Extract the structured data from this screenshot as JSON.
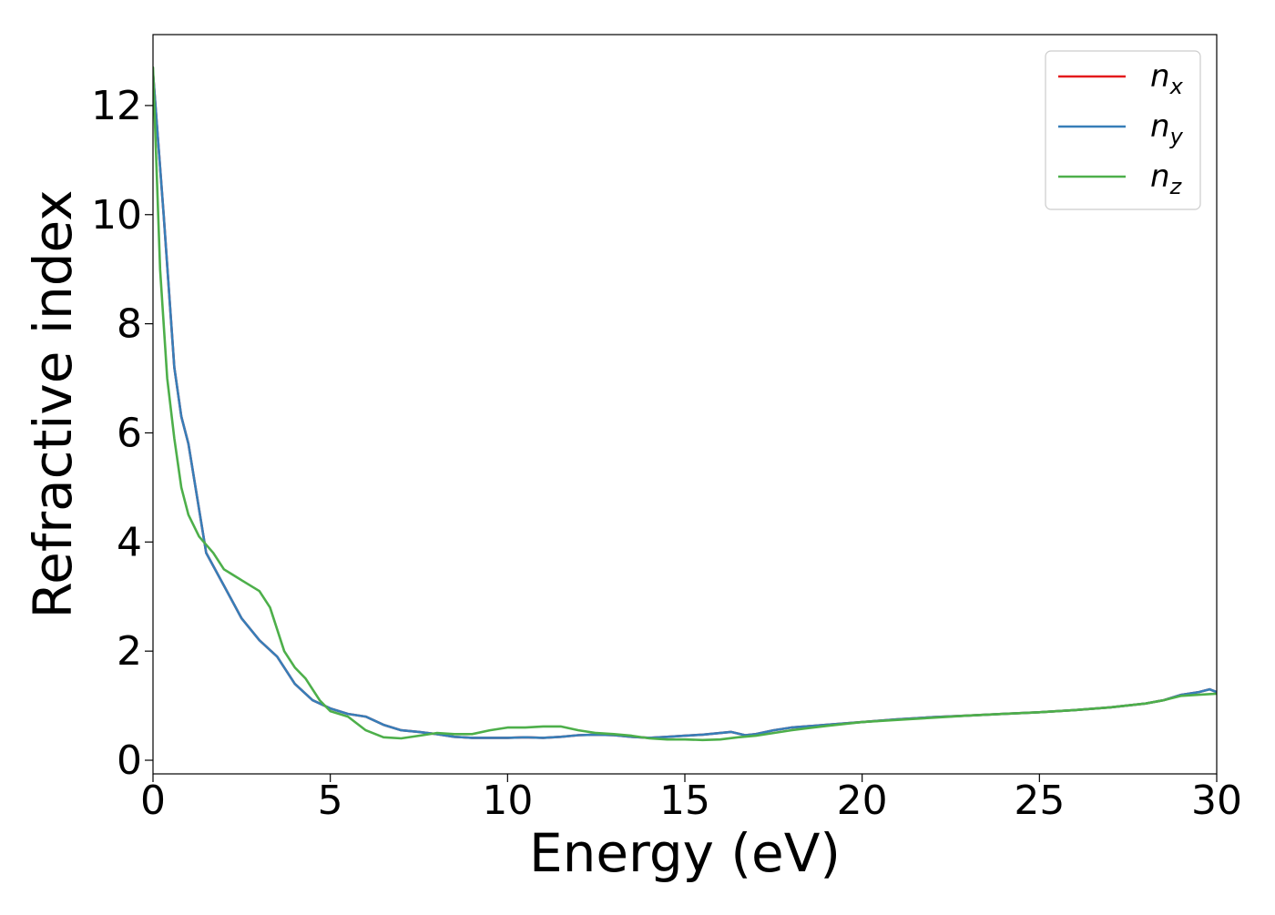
{
  "chart_data": {
    "type": "line",
    "title": "",
    "xlabel": "Energy (eV)",
    "ylabel": "Refractive index",
    "xlim": [
      0,
      30
    ],
    "ylim": [
      -0.25,
      13.3
    ],
    "xticks": [
      0,
      5,
      10,
      15,
      20,
      25,
      30
    ],
    "yticks": [
      0,
      2,
      4,
      6,
      8,
      10,
      12
    ],
    "grid": false,
    "legend_position": "top-right",
    "series": [
      {
        "name": "n",
        "subscript": "x",
        "color": "#e41a1c",
        "x": [
          0,
          0.3,
          0.6,
          0.8,
          1.0,
          1.2,
          1.5,
          2.0,
          2.5,
          3.0,
          3.5,
          4.0,
          4.5,
          5.0,
          5.5,
          6.0,
          6.5,
          7.0,
          7.5,
          8.0,
          8.5,
          9.0,
          9.5,
          10.0,
          10.5,
          11.0,
          11.5,
          12.0,
          12.5,
          13.0,
          13.5,
          14.0,
          14.5,
          15.0,
          15.5,
          16.0,
          16.3,
          16.7,
          17.0,
          17.5,
          18.0,
          19.0,
          20.0,
          21.0,
          22.0,
          23.0,
          24.0,
          25.0,
          26.0,
          27.0,
          28.0,
          28.5,
          29.0,
          29.5,
          29.8,
          30.0
        ],
        "y": [
          12.6,
          10.0,
          7.2,
          6.3,
          5.8,
          5.0,
          3.8,
          3.2,
          2.6,
          2.2,
          1.9,
          1.4,
          1.1,
          0.95,
          0.85,
          0.8,
          0.65,
          0.55,
          0.52,
          0.48,
          0.43,
          0.41,
          0.41,
          0.41,
          0.42,
          0.41,
          0.43,
          0.46,
          0.47,
          0.46,
          0.43,
          0.41,
          0.43,
          0.45,
          0.47,
          0.5,
          0.52,
          0.46,
          0.48,
          0.55,
          0.6,
          0.65,
          0.7,
          0.75,
          0.79,
          0.82,
          0.85,
          0.88,
          0.92,
          0.97,
          1.04,
          1.1,
          1.2,
          1.25,
          1.3,
          1.25
        ]
      },
      {
        "name": "n",
        "subscript": "y",
        "color": "#377eb8",
        "x": [
          0,
          0.3,
          0.6,
          0.8,
          1.0,
          1.2,
          1.5,
          2.0,
          2.5,
          3.0,
          3.5,
          4.0,
          4.5,
          5.0,
          5.5,
          6.0,
          6.5,
          7.0,
          7.5,
          8.0,
          8.5,
          9.0,
          9.5,
          10.0,
          10.5,
          11.0,
          11.5,
          12.0,
          12.5,
          13.0,
          13.5,
          14.0,
          14.5,
          15.0,
          15.5,
          16.0,
          16.3,
          16.7,
          17.0,
          17.5,
          18.0,
          19.0,
          20.0,
          21.0,
          22.0,
          23.0,
          24.0,
          25.0,
          26.0,
          27.0,
          28.0,
          28.5,
          29.0,
          29.5,
          29.8,
          30.0
        ],
        "y": [
          12.6,
          10.0,
          7.2,
          6.3,
          5.8,
          5.0,
          3.8,
          3.2,
          2.6,
          2.2,
          1.9,
          1.4,
          1.1,
          0.95,
          0.85,
          0.8,
          0.65,
          0.55,
          0.52,
          0.48,
          0.43,
          0.41,
          0.41,
          0.41,
          0.42,
          0.41,
          0.43,
          0.46,
          0.47,
          0.46,
          0.43,
          0.41,
          0.43,
          0.45,
          0.47,
          0.5,
          0.52,
          0.46,
          0.48,
          0.55,
          0.6,
          0.65,
          0.7,
          0.75,
          0.79,
          0.82,
          0.85,
          0.88,
          0.92,
          0.97,
          1.04,
          1.1,
          1.2,
          1.25,
          1.3,
          1.25
        ]
      },
      {
        "name": "n",
        "subscript": "z",
        "color": "#4daf4a",
        "x": [
          0,
          0.2,
          0.4,
          0.6,
          0.8,
          1.0,
          1.3,
          1.7,
          2.0,
          2.5,
          3.0,
          3.3,
          3.7,
          4.0,
          4.3,
          4.7,
          5.0,
          5.5,
          6.0,
          6.5,
          7.0,
          7.5,
          8.0,
          8.5,
          9.0,
          9.5,
          10.0,
          10.5,
          11.0,
          11.5,
          12.0,
          12.5,
          13.0,
          13.5,
          14.0,
          14.5,
          15.0,
          15.5,
          16.0,
          16.5,
          17.0,
          17.5,
          18.0,
          19.0,
          20.0,
          21.0,
          22.0,
          23.0,
          24.0,
          25.0,
          26.0,
          27.0,
          28.0,
          28.5,
          29.0,
          29.5,
          30.0
        ],
        "y": [
          12.7,
          9.0,
          7.0,
          5.9,
          5.0,
          4.5,
          4.1,
          3.8,
          3.5,
          3.3,
          3.1,
          2.8,
          2.0,
          1.7,
          1.5,
          1.1,
          0.9,
          0.8,
          0.55,
          0.42,
          0.4,
          0.45,
          0.5,
          0.48,
          0.48,
          0.55,
          0.6,
          0.6,
          0.62,
          0.62,
          0.55,
          0.5,
          0.48,
          0.45,
          0.4,
          0.38,
          0.38,
          0.37,
          0.38,
          0.42,
          0.45,
          0.5,
          0.55,
          0.63,
          0.7,
          0.74,
          0.78,
          0.82,
          0.85,
          0.88,
          0.92,
          0.97,
          1.04,
          1.1,
          1.18,
          1.2,
          1.22
        ]
      }
    ]
  }
}
